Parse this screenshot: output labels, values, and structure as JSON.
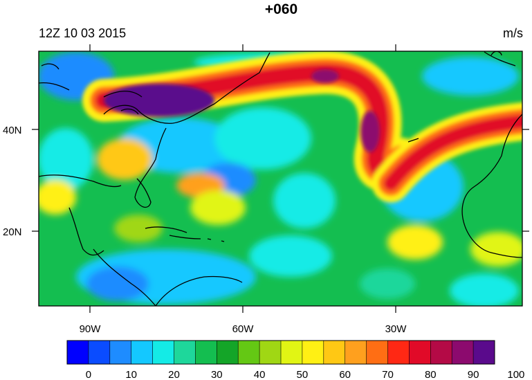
{
  "header": {
    "title": "+060",
    "valid_time": "12Z 10 03 2015",
    "units": "m/s"
  },
  "map": {
    "lat_ticks": [
      "40N",
      "20N"
    ],
    "lon_ticks": [
      "90W",
      "60W",
      "30W"
    ]
  },
  "colorbar": {
    "labels": [
      "0",
      "10",
      "20",
      "30",
      "40",
      "50",
      "60",
      "70",
      "80",
      "90",
      "100"
    ],
    "colors": [
      "#0000ff",
      "#0a4cff",
      "#1e8cff",
      "#14c8ff",
      "#14ebe6",
      "#1ed79b",
      "#14be50",
      "#14a528",
      "#64c814",
      "#a0d714",
      "#e1f514",
      "#fff014",
      "#ffc814",
      "#ffa01e",
      "#ff6e14",
      "#ff2814",
      "#e10a28",
      "#b40a46",
      "#8c0a6e",
      "#5a0a8c"
    ]
  }
}
